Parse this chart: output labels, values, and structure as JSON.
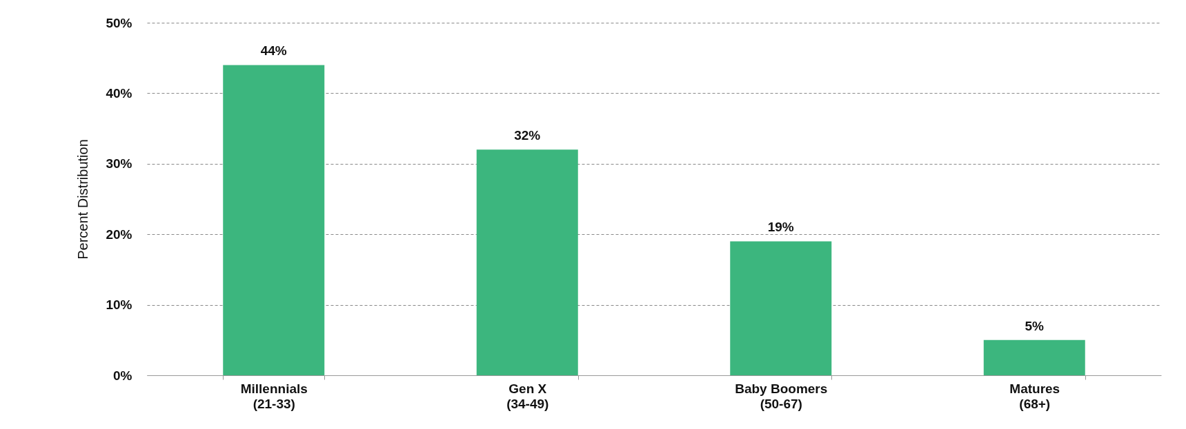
{
  "chart_data": {
    "type": "bar",
    "ylabel": "Percent Distribution",
    "categories": [
      "Millennials\n(21-33)",
      "Gen X\n(34-49)",
      "Baby Boomers\n(50-67)",
      "Matures\n(68+)"
    ],
    "values": [
      44,
      32,
      19,
      5
    ],
    "value_labels": [
      "44%",
      "32%",
      "19%",
      "5%"
    ],
    "color": "#3cb67e",
    "ylim": [
      0,
      50
    ],
    "yticks": [
      {
        "value": 0,
        "label": "0%"
      },
      {
        "value": 10,
        "label": "10%"
      },
      {
        "value": 20,
        "label": "20%"
      },
      {
        "value": 30,
        "label": "30%"
      },
      {
        "value": 40,
        "label": "40%"
      },
      {
        "value": 50,
        "label": "50%"
      }
    ],
    "grid": "y"
  }
}
